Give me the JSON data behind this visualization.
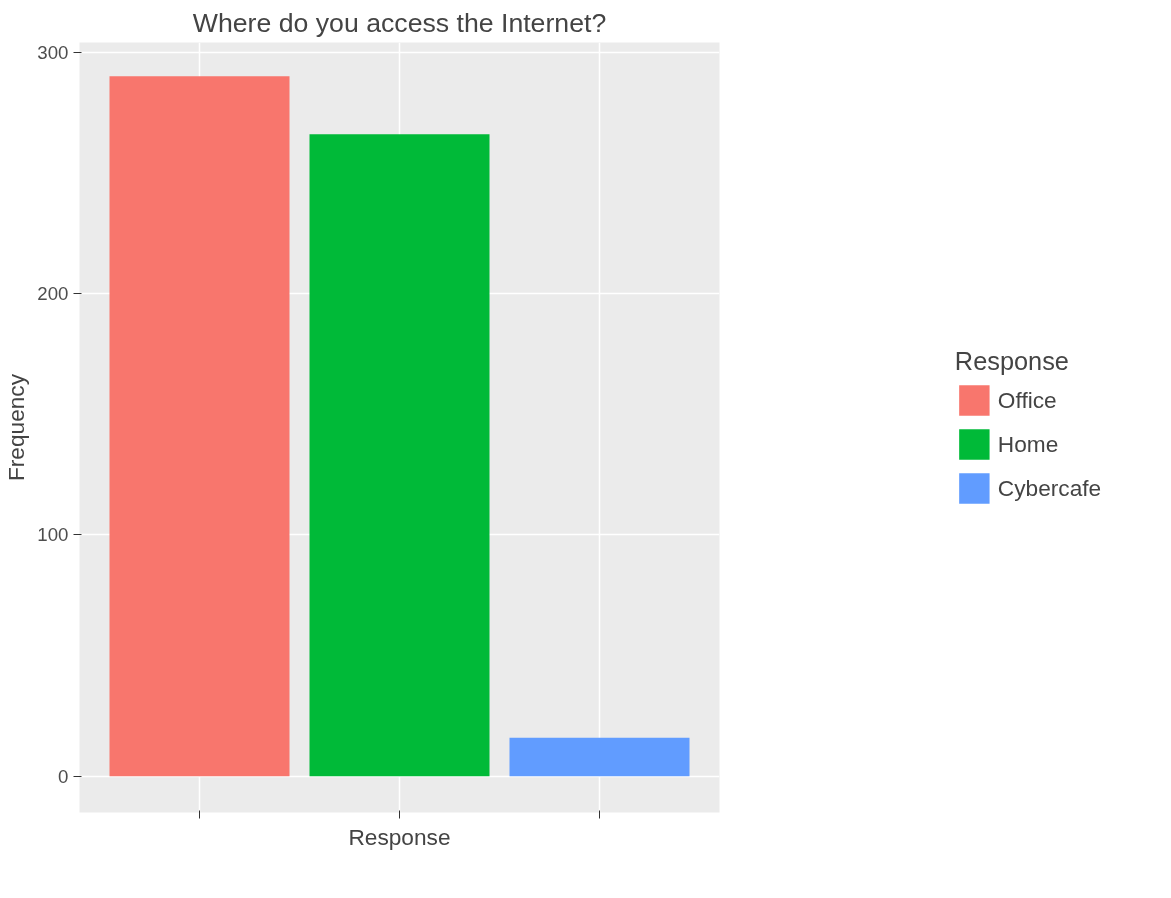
{
  "chart_data": {
    "type": "bar",
    "title": "Where do you access the Internet?",
    "xlabel": "Response",
    "ylabel": "Frequency",
    "legend_title": "Response",
    "categories": [
      null,
      null,
      null
    ],
    "stacked": true,
    "series": [
      {
        "name": "Office",
        "color": "#f8766d",
        "values": [
          290,
          null,
          null
        ]
      },
      {
        "name": "Home",
        "color": "#00ba38",
        "values": [
          null,
          266,
          null
        ]
      },
      {
        "name": "Cybercafe",
        "color": "#619cff",
        "values": [
          null,
          null,
          16
        ]
      }
    ],
    "ylim": [
      -15,
      304
    ],
    "yticks": [
      0,
      100,
      200,
      300
    ],
    "grid": true,
    "legend": "right",
    "tick_labels": "y"
  }
}
